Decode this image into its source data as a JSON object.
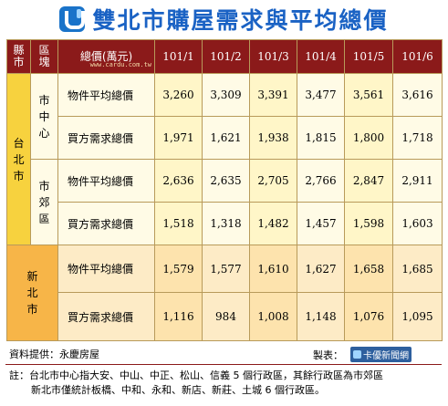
{
  "title": "雙北市購屋需求與平均總價",
  "headers": {
    "county": "縣市",
    "district": "區塊",
    "total": "總價(萬元)",
    "watermark": "www.cardu.com.tw",
    "months": [
      "101/1",
      "101/2",
      "101/3",
      "101/4",
      "101/5",
      "101/6"
    ]
  },
  "taipei": {
    "name": "台北市",
    "center": {
      "name": "市中心",
      "avg_label": "物件平均總價",
      "avg": [
        "3,260",
        "3,309",
        "3,391",
        "3,477",
        "3,561",
        "3,616"
      ],
      "buyer_label": "買方需求總價",
      "buyer": [
        "1,971",
        "1,621",
        "1,938",
        "1,815",
        "1,800",
        "1,718"
      ]
    },
    "suburb": {
      "name": "市郊區",
      "avg_label": "物件平均總價",
      "avg": [
        "2,636",
        "2,635",
        "2,705",
        "2,766",
        "2,847",
        "2,911"
      ],
      "buyer_label": "買方需求總價",
      "buyer": [
        "1,518",
        "1,318",
        "1,482",
        "1,457",
        "1,598",
        "1,603"
      ]
    }
  },
  "newtaipei": {
    "name": "新北市",
    "avg_label": "物件平均總價",
    "avg": [
      "1,579",
      "1,577",
      "1,610",
      "1,627",
      "1,658",
      "1,685"
    ],
    "buyer_label": "買方需求總價",
    "buyer": [
      "1,116",
      "984",
      "1,008",
      "1,148",
      "1,076",
      "1,095"
    ]
  },
  "footer": {
    "source": "資料提供：永慶房屋",
    "maker_label": "製表：",
    "brand": "卡優新聞網",
    "note_line1": "註：台北市中心指大安、中山、中正、松山、信義 5 個行政區，其餘行政區為市郊區",
    "note_line2": "新北市僅統計板橋、中和、永和、新店、新莊、土城 6 個行政區。"
  },
  "colors": {
    "title": "#1a62c4",
    "header_bg": "#8b1a1a",
    "taipei_bg": "#f7d23e",
    "newtaipei_bg": "#f7b548"
  }
}
